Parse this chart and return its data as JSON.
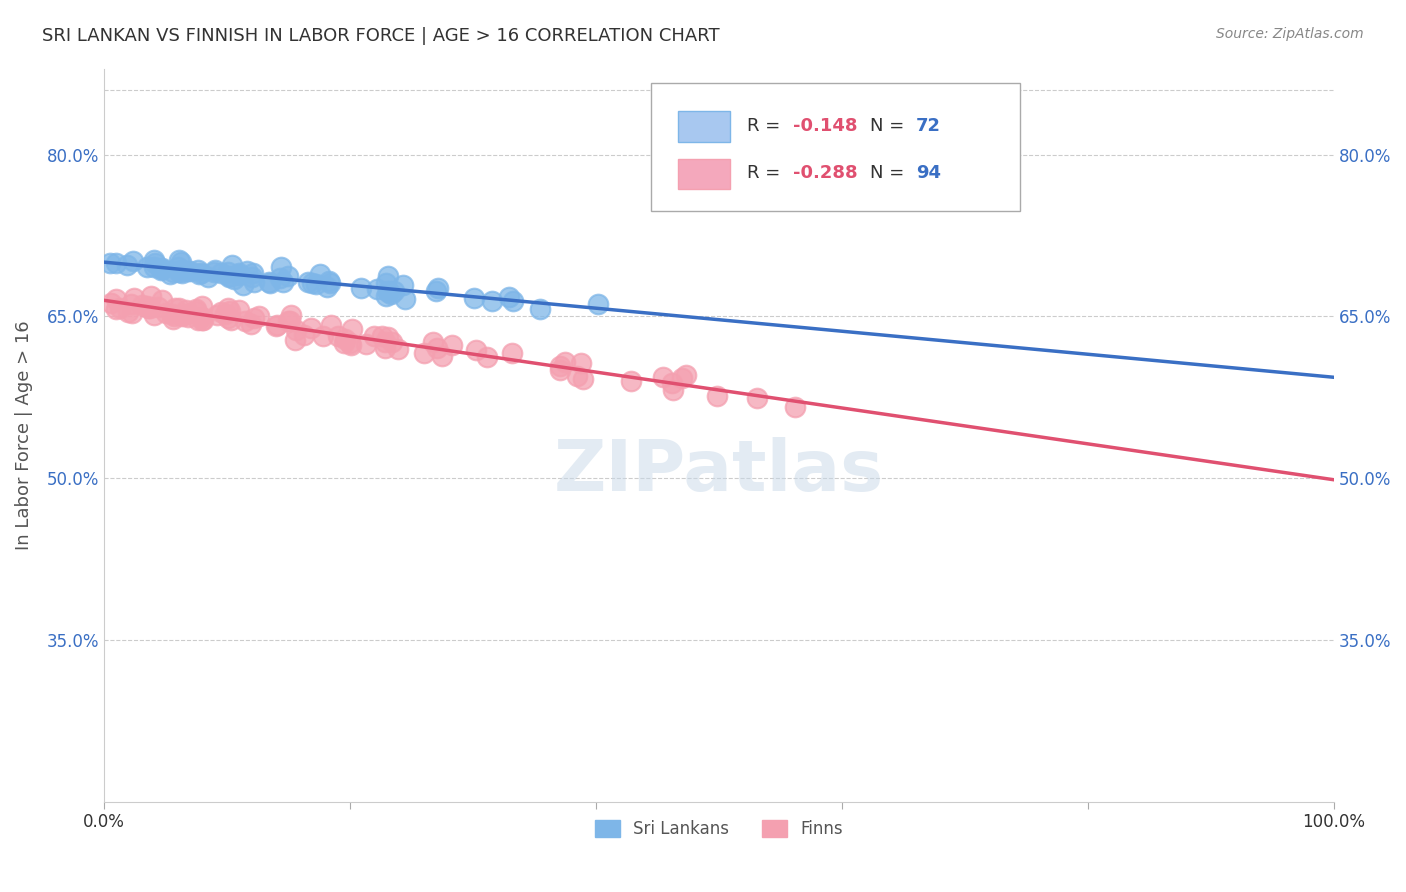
{
  "title": "SRI LANKAN VS FINNISH IN LABOR FORCE | AGE > 16 CORRELATION CHART",
  "source": "Source: ZipAtlas.com",
  "ylabel": "In Labor Force | Age > 16",
  "ytick_labels": [
    "35.0%",
    "50.0%",
    "65.0%",
    "80.0%"
  ],
  "ytick_values": [
    0.35,
    0.5,
    0.65,
    0.8
  ],
  "xlim": [
    0.0,
    1.0
  ],
  "ylim": [
    0.2,
    0.88
  ],
  "sri_lankans_color": "#7EB6E8",
  "finns_color": "#F4A0B0",
  "sri_lankans_line_color": "#3A6FC4",
  "finns_line_color": "#E05070",
  "legend_box_sri_color": "#A8C8F0",
  "legend_box_finn_color": "#F4A8BC",
  "sri_r": -0.148,
  "sri_n": 72,
  "finn_r": -0.288,
  "finn_n": 94,
  "watermark": "ZIPatlas",
  "background_color": "#ffffff",
  "grid_color": "#cccccc",
  "title_color": "#333333",
  "axis_label_color": "#555555",
  "legend_r_color": "#E05070",
  "legend_n_color": "#3A6FC4"
}
